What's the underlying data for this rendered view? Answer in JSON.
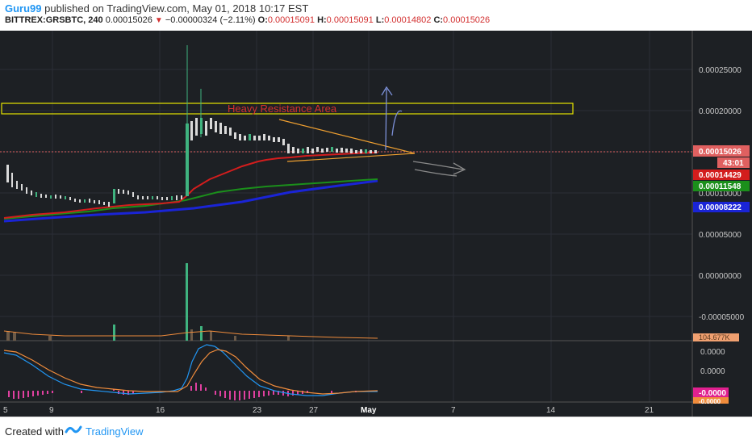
{
  "header": {
    "username": "Guru99",
    "published_text": "published on TradingView.com, May 01, 2018 10:17 EST",
    "symbol": "BITTREX:GRSBTC, 240",
    "last_price": "0.00015026",
    "change": "−0.00000324 (−2.11%)",
    "o_label": "O:",
    "o_value": "0.00015091",
    "h_label": "H:",
    "h_value": "0.00015091",
    "l_label": "L:",
    "l_value": "0.00014802",
    "c_label": "C:",
    "c_value": "0.00015026"
  },
  "annotation": {
    "resistance_label": "Heavy Resistance Area"
  },
  "price_axis": {
    "ticks": [
      "0.00025000",
      "0.00020000",
      "0.00010000",
      "0.00005000",
      "0.00000000",
      "-0.00005000"
    ],
    "badges": {
      "current": "0.00015026",
      "countdown": "43:01",
      "ma_red": "0.00014429",
      "ma_green": "0.00011548",
      "ma_blue": "0.00008222",
      "volume": "104.677K"
    }
  },
  "indicator_axis": {
    "ticks": [
      "0.0000",
      "0.0000"
    ],
    "badges": {
      "pink": "-0.0000",
      "orange": "-0.0000"
    }
  },
  "time_axis": {
    "labels": [
      "5",
      "9",
      "16",
      "23",
      "27",
      "May",
      "7",
      "14",
      "21"
    ]
  },
  "colors": {
    "background": "#1d2024",
    "grid": "#2a2e36",
    "ma_red": "#d31d1d",
    "ma_green": "#1b8f1b",
    "ma_blue": "#1a24d6",
    "up_candle": "#3fb37f",
    "down_candle": "#d9d9d9",
    "triangle": "#f0a030",
    "resistance_box": "#e6e600",
    "current_price_badge": "#e06060"
  },
  "footer": {
    "created_with": "Created with",
    "brand": "TradingView"
  }
}
